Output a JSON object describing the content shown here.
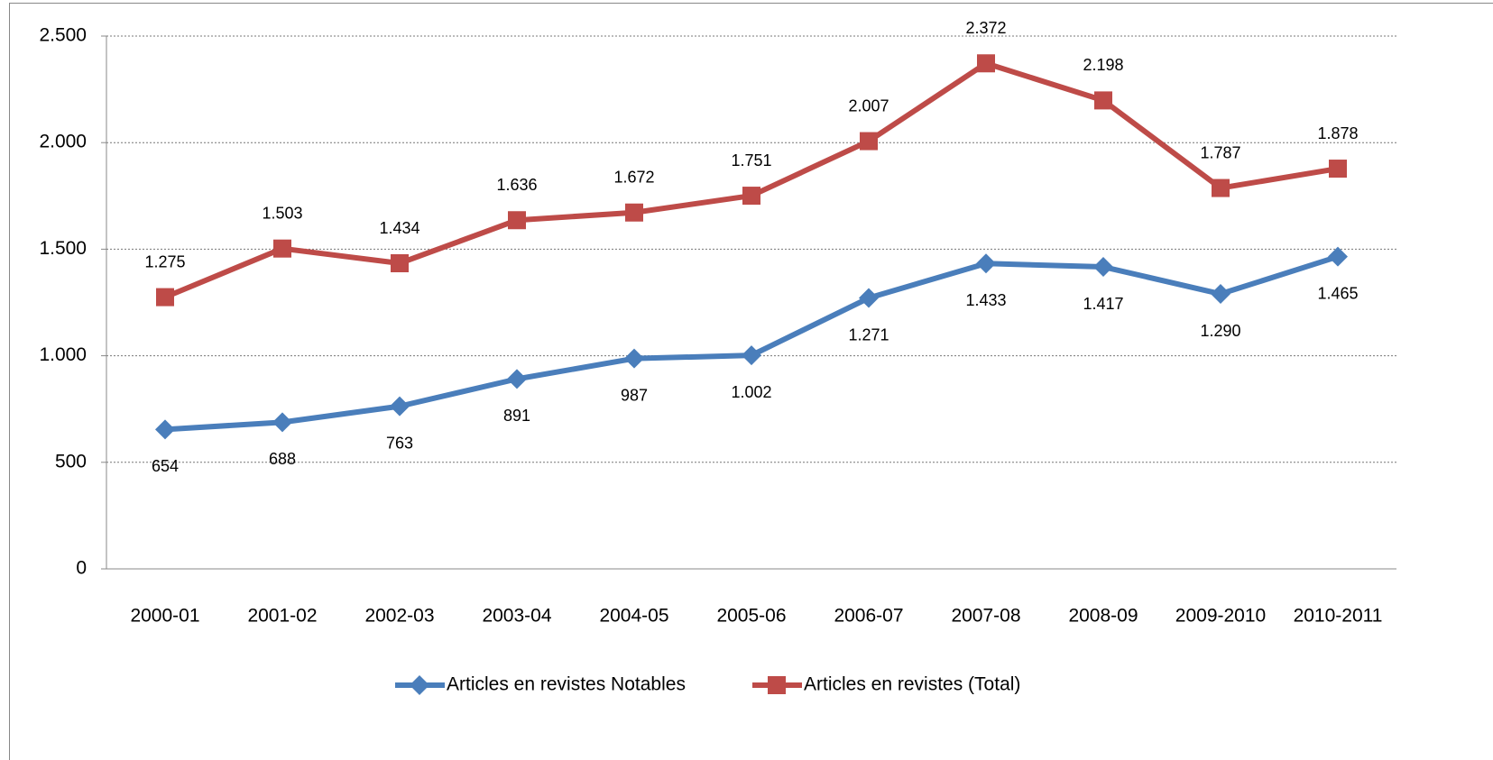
{
  "chart_data": {
    "type": "line",
    "categories": [
      "2000-01",
      "2001-02",
      "2002-03",
      "2003-04",
      "2004-05",
      "2005-06",
      "2006-07",
      "2007-08",
      "2008-09",
      "2009-2010",
      "2010-2011"
    ],
    "series": [
      {
        "name": "Articles en revistes Notables",
        "color": "#4a7ebb",
        "marker": "diamond",
        "values": [
          654,
          688,
          763,
          891,
          987,
          1002,
          1271,
          1433,
          1417,
          1290,
          1465
        ],
        "value_labels": [
          "654",
          "688",
          "763",
          "891",
          "987",
          "1.002",
          "1.271",
          "1.433",
          "1.417",
          "1.290",
          "1.465"
        ]
      },
      {
        "name": "Articles en revistes (Total)",
        "color": "#be4b48",
        "marker": "square",
        "values": [
          1275,
          1503,
          1434,
          1636,
          1672,
          1751,
          2007,
          2372,
          2198,
          1787,
          1878
        ],
        "value_labels": [
          "1.275",
          "1.503",
          "1.434",
          "1.636",
          "1.672",
          "1.751",
          "2.007",
          "2.372",
          "2.198",
          "1.787",
          "1.878"
        ]
      }
    ],
    "ylim": [
      0,
      2500
    ],
    "yticks": [
      0,
      500,
      {
        "value": 1000,
        "label": "1.000"
      },
      {
        "value": 1500,
        "label": "1.500"
      },
      {
        "value": 2000,
        "label": "2.000"
      },
      {
        "value": 2500,
        "label": "2.500"
      }
    ],
    "grid": true,
    "legend": "bottom"
  }
}
